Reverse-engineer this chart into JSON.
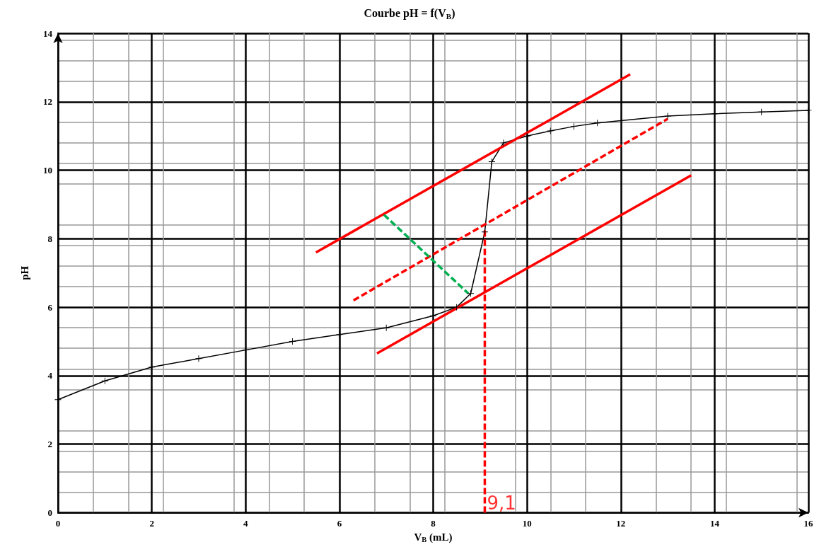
{
  "chart_data": {
    "type": "line",
    "title": "Courbe pH = f(V$_{B}$)",
    "xlabel": "V$_{B}$ (mL)",
    "ylabel": "pH",
    "xlim": [
      0,
      16
    ],
    "xticks": [
      0,
      2,
      4,
      6,
      8,
      10,
      12,
      14,
      16
    ],
    "ylim": [
      0,
      14
    ],
    "yticks": [
      0,
      2,
      4,
      6,
      8,
      10,
      12,
      14
    ],
    "grid": true,
    "marker": "none",
    "line_style": "solid",
    "series": [
      {
        "color": "#000000",
        "marker": "cross",
        "x": [
          0,
          1,
          2,
          3,
          4,
          5,
          6,
          7,
          8,
          8.5,
          8.8,
          9.1,
          9.25,
          9.5,
          10,
          10.5,
          11,
          11.5,
          13,
          14,
          15,
          16
        ],
        "values": [
          3.3,
          3.85,
          4.25,
          4.5,
          4.75,
          5.0,
          5.2,
          5.4,
          5.75,
          6.0,
          6.4,
          8.2,
          10.25,
          10.8,
          11.0,
          11.15,
          11.28,
          11.38,
          11.58,
          11.65,
          11.7,
          11.75
        ]
      },
      {
        "color": "#ff0000",
        "x": [
          5.5,
          12.2
        ],
        "values": [
          7.6,
          12.8
        ]
      },
      {
        "color": "#ff0000",
        "x": [
          6.8,
          13.5
        ],
        "values": [
          4.65,
          9.85
        ]
      },
      {
        "color": "#ff0000",
        "line_style": "dashed",
        "x": [
          6.3,
          13.0
        ],
        "values": [
          6.2,
          11.5
        ]
      },
      {
        "color": "#00b050",
        "line_style": "dashed",
        "x": [
          6.95,
          8.75
        ],
        "values": [
          8.7,
          6.4
        ]
      },
      {
        "color": "#ff0000",
        "line_style": "dashed",
        "x": [
          9.1,
          9.1
        ],
        "values": [
          0,
          8.3
        ]
      }
    ],
    "annotations": [
      {
        "text": "9,1",
        "x": 9.1,
        "y": 0
      }
    ]
  }
}
